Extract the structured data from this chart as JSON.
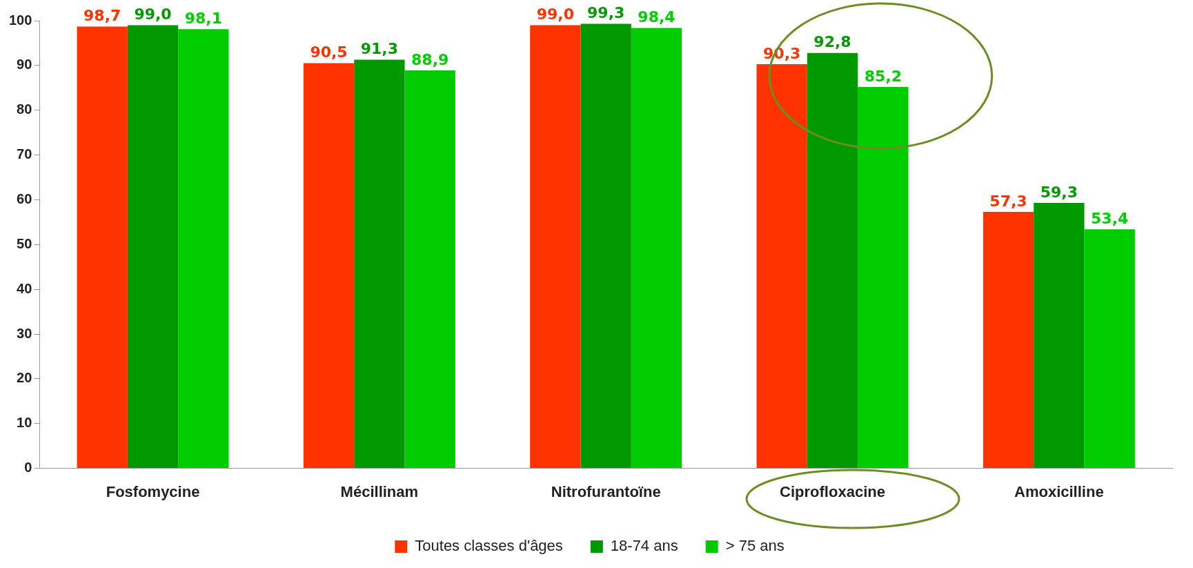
{
  "chart_data": {
    "type": "bar",
    "categories": [
      "Fosfomycine",
      "Mécillinam",
      "Nitrofurantoïne",
      "Ciprofloxacine",
      "Amoxicilline"
    ],
    "series": [
      {
        "name": "Toutes classes d'âges",
        "color": "#ff3300",
        "values": [
          98.7,
          90.5,
          99.0,
          90.3,
          57.3
        ],
        "value_labels": [
          "98,7",
          "90,5",
          "99,0",
          "90,3",
          "57,3"
        ]
      },
      {
        "name": "18-74 ans",
        "color": "#009900",
        "values": [
          99.0,
          91.3,
          99.3,
          92.8,
          59.3
        ],
        "value_labels": [
          "99,0",
          "91,3",
          "99,3",
          "92,8",
          "59,3"
        ]
      },
      {
        "name": "> 75 ans",
        "color": "#00cc00",
        "values": [
          98.1,
          88.9,
          98.4,
          85.2,
          53.4
        ],
        "value_labels": [
          "98,1",
          "88,9",
          "98,4",
          "85,2",
          "53,4"
        ]
      }
    ],
    "ylim": [
      0,
      100
    ],
    "yticks": [
      0,
      10,
      20,
      30,
      40,
      50,
      60,
      70,
      80,
      90,
      100
    ],
    "grid": false,
    "legend": "bottom"
  }
}
